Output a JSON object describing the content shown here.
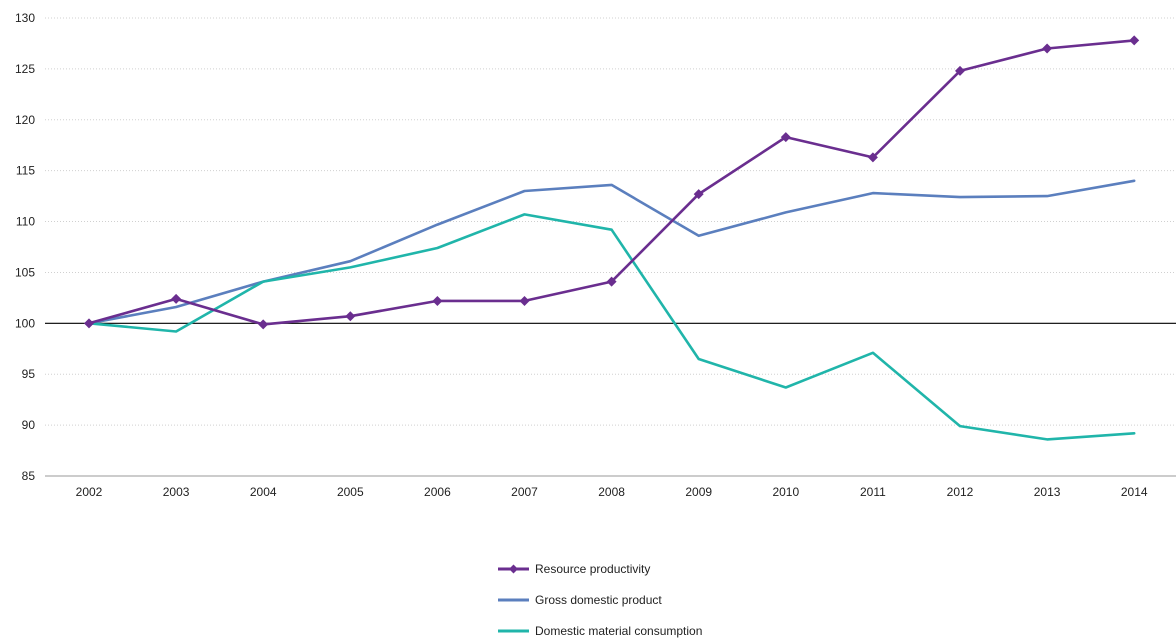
{
  "chart_data": {
    "type": "line",
    "title": "",
    "xlabel": "",
    "ylabel": "",
    "x": [
      "2002",
      "2003",
      "2004",
      "2005",
      "2006",
      "2007",
      "2008",
      "2009",
      "2010",
      "2011",
      "2012",
      "2013",
      "2014"
    ],
    "ylim": [
      85,
      130
    ],
    "yticks": [
      85,
      90,
      95,
      100,
      105,
      110,
      115,
      120,
      125,
      130
    ],
    "baseline": 100,
    "grid": "horizontal dotted",
    "legend_position": "bottom-center",
    "series": [
      {
        "name": "Resource productivity",
        "color": "#6a2e8f",
        "marker": "diamond",
        "values": [
          100.0,
          102.4,
          99.9,
          100.7,
          102.2,
          102.2,
          104.1,
          112.7,
          118.3,
          116.3,
          124.8,
          127.0,
          127.8
        ]
      },
      {
        "name": "Gross domestic product",
        "color": "#5b7fbe",
        "marker": "none",
        "values": [
          100.0,
          101.6,
          104.1,
          106.1,
          109.7,
          113.0,
          113.6,
          108.6,
          110.9,
          112.8,
          112.4,
          112.5,
          114.0
        ]
      },
      {
        "name": "Domestic material consumption",
        "color": "#20b5aa",
        "marker": "none",
        "values": [
          100.0,
          99.2,
          104.1,
          105.5,
          107.4,
          110.7,
          109.2,
          96.5,
          93.7,
          97.1,
          89.9,
          88.6,
          89.2
        ]
      }
    ]
  }
}
